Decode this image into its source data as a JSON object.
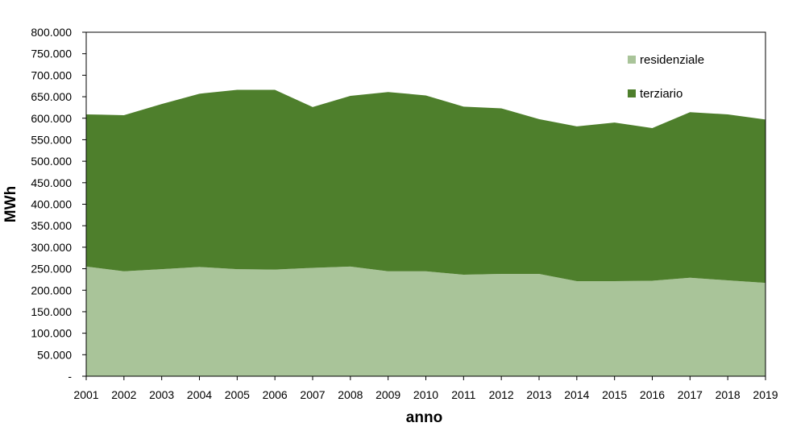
{
  "chart_data": {
    "type": "area",
    "stacked": true,
    "x": [
      "2001",
      "2002",
      "2003",
      "2004",
      "2005",
      "2006",
      "2007",
      "2008",
      "2009",
      "2010",
      "2011",
      "2012",
      "2013",
      "2014",
      "2015",
      "2016",
      "2017",
      "2018",
      "2019"
    ],
    "series": [
      {
        "name": "residenziale",
        "color": "#a9c499",
        "values": [
          255000,
          244000,
          249000,
          254000,
          249000,
          248000,
          252000,
          255000,
          244000,
          244000,
          236000,
          238000,
          238000,
          221000,
          221000,
          222000,
          229000,
          223000,
          217000
        ]
      },
      {
        "name": "terziario",
        "color": "#4e7f2c",
        "values": [
          354000,
          363000,
          384000,
          403000,
          417000,
          418000,
          374000,
          397000,
          417000,
          409000,
          391000,
          385000,
          360000,
          360000,
          369000,
          355000,
          385000,
          386000,
          380000
        ]
      }
    ],
    "title": "",
    "xlabel": "anno",
    "ylabel": "MWh",
    "ylim": [
      0,
      800000
    ],
    "y_ticks": [
      "-",
      "50.000",
      "100.000",
      "150.000",
      "200.000",
      "250.000",
      "300.000",
      "350.000",
      "400.000",
      "450.000",
      "500.000",
      "550.000",
      "600.000",
      "650.000",
      "700.000",
      "750.000",
      "800.000"
    ],
    "grid": false,
    "legend_position": "top-right"
  }
}
